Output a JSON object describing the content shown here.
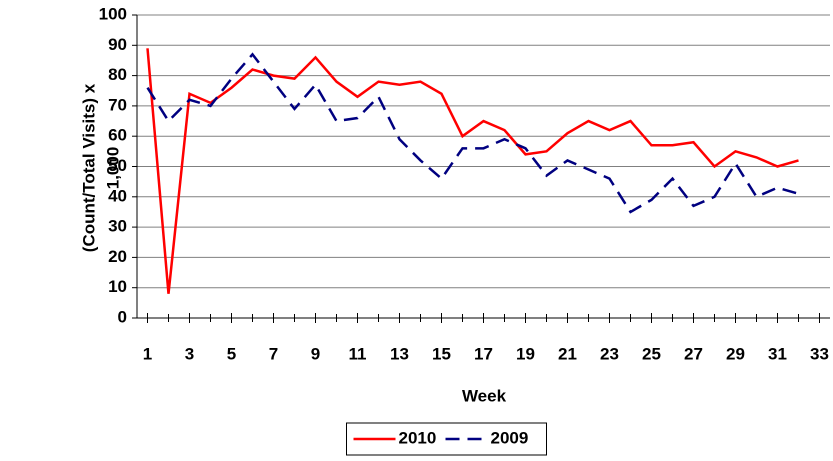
{
  "chart_data": {
    "type": "line",
    "xlabel": "Week",
    "ylabel": [
      "(Count/Total Visits) x",
      "1,000"
    ],
    "x": [
      1,
      2,
      3,
      4,
      5,
      6,
      7,
      8,
      9,
      10,
      11,
      12,
      13,
      14,
      15,
      16,
      17,
      18,
      19,
      20,
      21,
      22,
      23,
      24,
      25,
      26,
      27,
      28,
      29,
      30,
      31,
      32
    ],
    "series": [
      {
        "name": "2010",
        "color": "#ff0000",
        "dash": false,
        "values": [
          89,
          8,
          74,
          71,
          76,
          82,
          80,
          79,
          86,
          78,
          73,
          78,
          77,
          78,
          74,
          60,
          65,
          62,
          54,
          55,
          61,
          65,
          62,
          65,
          57,
          57,
          58,
          50,
          55,
          53,
          50,
          52
        ]
      },
      {
        "name": "2009",
        "color": "#000080",
        "dash": true,
        "values": [
          76,
          65,
          72,
          70,
          79,
          87,
          78,
          69,
          77,
          65,
          66,
          73,
          59,
          52,
          46,
          56,
          56,
          59,
          56,
          47,
          52,
          49,
          46,
          35,
          39,
          46,
          37,
          40,
          51,
          40,
          43,
          41
        ]
      }
    ],
    "xlim": [
      0.5,
      33.5
    ],
    "xticks": [
      1,
      3,
      5,
      7,
      9,
      11,
      13,
      15,
      17,
      19,
      21,
      23,
      25,
      27,
      29,
      31,
      33
    ],
    "ylim": [
      0,
      100
    ],
    "yticks": [
      0,
      10,
      20,
      30,
      40,
      50,
      60,
      70,
      80,
      90,
      100
    ],
    "grid": true,
    "legend": "bottom"
  }
}
